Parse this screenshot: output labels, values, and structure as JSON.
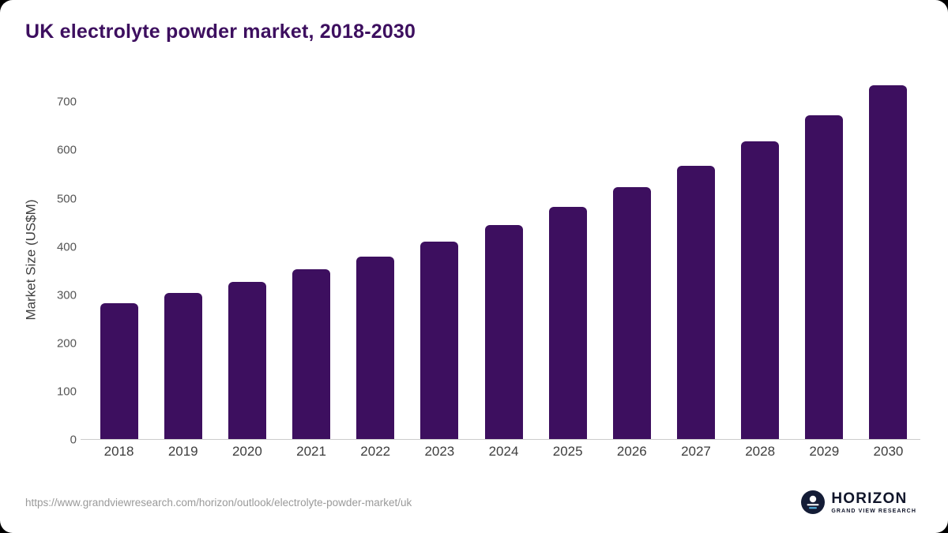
{
  "chart_data": {
    "type": "bar",
    "title": "UK electrolyte powder market, 2018-2030",
    "xlabel": "",
    "ylabel": "Market Size (US$M)",
    "categories": [
      "2018",
      "2019",
      "2020",
      "2021",
      "2022",
      "2023",
      "2024",
      "2025",
      "2026",
      "2027",
      "2028",
      "2029",
      "2030"
    ],
    "values": [
      283,
      305,
      328,
      354,
      380,
      411,
      445,
      483,
      524,
      568,
      619,
      673,
      735
    ],
    "yticks": [
      0,
      100,
      200,
      300,
      400,
      500,
      600,
      700
    ],
    "ylim": [
      0,
      748
    ],
    "scale_max": 748,
    "grid": false,
    "legend": false,
    "bar_color": "#3d0f5f",
    "title_color": "#3d0f5f"
  },
  "footer": {
    "source_url": "https://www.grandviewresearch.com/horizon/outlook/electrolyte-powder-market/uk",
    "logo_title": "HORIZON",
    "logo_subtitle": "GRAND VIEW RESEARCH"
  }
}
